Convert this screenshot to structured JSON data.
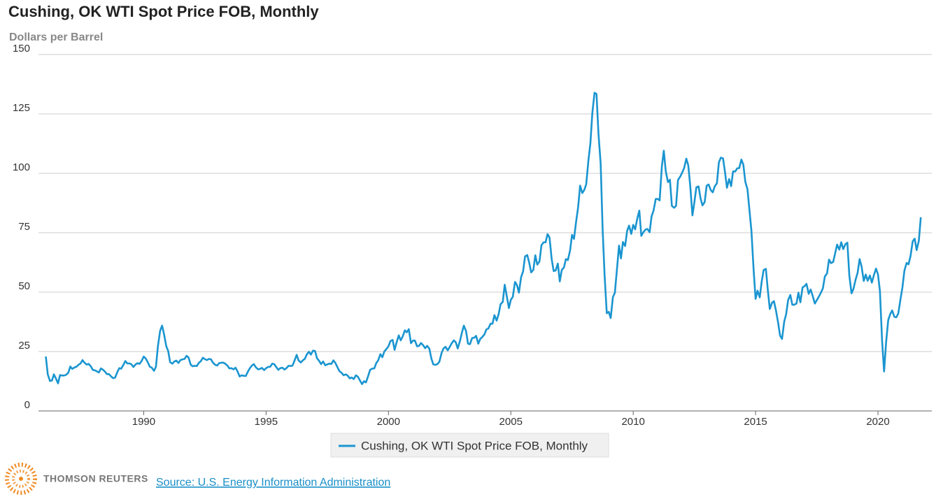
{
  "chart_data": {
    "type": "line",
    "title": "Cushing, OK WTI Spot Price FOB, Monthly",
    "subtitle": "Dollars per Barrel",
    "legend": "bottom",
    "grid": true,
    "xlim": [
      1985.7,
      2022.2
    ],
    "xticks": [
      1990,
      1995,
      2000,
      2005,
      2010,
      2015,
      2020
    ],
    "ylim": [
      0,
      150
    ],
    "yticks": [
      0,
      25,
      50,
      75,
      100,
      125,
      150
    ],
    "x": [
      1986.0,
      1986.08,
      1986.17,
      1986.25,
      1986.33,
      1986.42,
      1986.5,
      1986.58,
      1986.67,
      1986.75,
      1986.83,
      1986.92,
      1987.0,
      1987.08,
      1987.17,
      1987.25,
      1987.33,
      1987.42,
      1987.5,
      1987.58,
      1987.67,
      1987.75,
      1987.83,
      1987.92,
      1988.0,
      1988.08,
      1988.17,
      1988.25,
      1988.33,
      1988.42,
      1988.5,
      1988.58,
      1988.67,
      1988.75,
      1988.83,
      1988.92,
      1989.0,
      1989.08,
      1989.17,
      1989.25,
      1989.33,
      1989.42,
      1989.5,
      1989.58,
      1989.67,
      1989.75,
      1989.83,
      1989.92,
      1990.0,
      1990.08,
      1990.17,
      1990.25,
      1990.33,
      1990.42,
      1990.5,
      1990.58,
      1990.67,
      1990.75,
      1990.83,
      1990.92,
      1991.0,
      1991.08,
      1991.17,
      1991.25,
      1991.33,
      1991.42,
      1991.5,
      1991.58,
      1991.67,
      1991.75,
      1991.83,
      1991.92,
      1992.0,
      1992.08,
      1992.17,
      1992.25,
      1992.33,
      1992.42,
      1992.5,
      1992.58,
      1992.67,
      1992.75,
      1992.83,
      1992.92,
      1993.0,
      1993.08,
      1993.17,
      1993.25,
      1993.33,
      1993.42,
      1993.5,
      1993.58,
      1993.67,
      1993.75,
      1993.83,
      1993.92,
      1994.0,
      1994.08,
      1994.17,
      1994.25,
      1994.33,
      1994.42,
      1994.5,
      1994.58,
      1994.67,
      1994.75,
      1994.83,
      1994.92,
      1995.0,
      1995.08,
      1995.17,
      1995.25,
      1995.33,
      1995.42,
      1995.5,
      1995.58,
      1995.67,
      1995.75,
      1995.83,
      1995.92,
      1996.0,
      1996.08,
      1996.17,
      1996.25,
      1996.33,
      1996.42,
      1996.5,
      1996.58,
      1996.67,
      1996.75,
      1996.83,
      1996.92,
      1997.0,
      1997.08,
      1997.17,
      1997.25,
      1997.33,
      1997.42,
      1997.5,
      1997.58,
      1997.67,
      1997.75,
      1997.83,
      1997.92,
      1998.0,
      1998.08,
      1998.17,
      1998.25,
      1998.33,
      1998.42,
      1998.5,
      1998.58,
      1998.67,
      1998.75,
      1998.83,
      1998.92,
      1999.0,
      1999.08,
      1999.17,
      1999.25,
      1999.33,
      1999.42,
      1999.5,
      1999.58,
      1999.67,
      1999.75,
      1999.83,
      1999.92,
      2000.0,
      2000.08,
      2000.17,
      2000.25,
      2000.33,
      2000.42,
      2000.5,
      2000.58,
      2000.67,
      2000.75,
      2000.83,
      2000.92,
      2001.0,
      2001.08,
      2001.17,
      2001.25,
      2001.33,
      2001.42,
      2001.5,
      2001.58,
      2001.67,
      2001.75,
      2001.83,
      2001.92,
      2002.0,
      2002.08,
      2002.17,
      2002.25,
      2002.33,
      2002.42,
      2002.5,
      2002.58,
      2002.67,
      2002.75,
      2002.83,
      2002.92,
      2003.0,
      2003.08,
      2003.17,
      2003.25,
      2003.33,
      2003.42,
      2003.5,
      2003.58,
      2003.67,
      2003.75,
      2003.83,
      2003.92,
      2004.0,
      2004.08,
      2004.17,
      2004.25,
      2004.33,
      2004.42,
      2004.5,
      2004.58,
      2004.67,
      2004.75,
      2004.83,
      2004.92,
      2005.0,
      2005.08,
      2005.17,
      2005.25,
      2005.33,
      2005.42,
      2005.5,
      2005.58,
      2005.67,
      2005.75,
      2005.83,
      2005.92,
      2006.0,
      2006.08,
      2006.17,
      2006.25,
      2006.33,
      2006.42,
      2006.5,
      2006.58,
      2006.67,
      2006.75,
      2006.83,
      2006.92,
      2007.0,
      2007.08,
      2007.17,
      2007.25,
      2007.33,
      2007.42,
      2007.5,
      2007.58,
      2007.67,
      2007.75,
      2007.83,
      2007.92,
      2008.0,
      2008.08,
      2008.17,
      2008.25,
      2008.33,
      2008.42,
      2008.5,
      2008.58,
      2008.67,
      2008.75,
      2008.83,
      2008.92,
      2009.0,
      2009.08,
      2009.17,
      2009.25,
      2009.33,
      2009.42,
      2009.5,
      2009.58,
      2009.67,
      2009.75,
      2009.83,
      2009.92,
      2010.0,
      2010.08,
      2010.17,
      2010.25,
      2010.33,
      2010.42,
      2010.5,
      2010.58,
      2010.67,
      2010.75,
      2010.83,
      2010.92,
      2011.0,
      2011.08,
      2011.17,
      2011.25,
      2011.33,
      2011.42,
      2011.5,
      2011.58,
      2011.67,
      2011.75,
      2011.83,
      2011.92,
      2012.0,
      2012.08,
      2012.17,
      2012.25,
      2012.33,
      2012.42,
      2012.5,
      2012.58,
      2012.67,
      2012.75,
      2012.83,
      2012.92,
      2013.0,
      2013.08,
      2013.17,
      2013.25,
      2013.33,
      2013.42,
      2013.5,
      2013.58,
      2013.67,
      2013.75,
      2013.83,
      2013.92,
      2014.0,
      2014.08,
      2014.17,
      2014.25,
      2014.33,
      2014.42,
      2014.5,
      2014.58,
      2014.67,
      2014.75,
      2014.83,
      2014.92,
      2015.0,
      2015.08,
      2015.17,
      2015.25,
      2015.33,
      2015.42,
      2015.5,
      2015.58,
      2015.67,
      2015.75,
      2015.83,
      2015.92,
      2016.0,
      2016.08,
      2016.17,
      2016.25,
      2016.33,
      2016.42,
      2016.5,
      2016.58,
      2016.67,
      2016.75,
      2016.83,
      2016.92,
      2017.0,
      2017.08,
      2017.17,
      2017.25,
      2017.33,
      2017.42,
      2017.5,
      2017.58,
      2017.67,
      2017.75,
      2017.83,
      2017.92,
      2018.0,
      2018.08,
      2018.17,
      2018.25,
      2018.33,
      2018.42,
      2018.5,
      2018.58,
      2018.67,
      2018.75,
      2018.83,
      2018.92,
      2019.0,
      2019.08,
      2019.17,
      2019.25,
      2019.33,
      2019.42,
      2019.5,
      2019.58,
      2019.67,
      2019.75,
      2019.83,
      2019.92,
      2020.0,
      2020.08,
      2020.17,
      2020.25,
      2020.33,
      2020.42,
      2020.5,
      2020.58,
      2020.67,
      2020.75,
      2020.83,
      2020.92,
      2021.0,
      2021.08,
      2021.17,
      2021.25,
      2021.33,
      2021.42,
      2021.5,
      2021.58,
      2021.67,
      2021.75
    ],
    "series": [
      {
        "name": "Cushing, OK WTI Spot Price FOB, Monthly",
        "color": "#1a95d0",
        "values": [
          22.9,
          15.4,
          12.6,
          12.8,
          15.4,
          13.5,
          11.6,
          15.1,
          14.9,
          14.9,
          15.2,
          16.1,
          18.7,
          17.7,
          18.3,
          18.6,
          19.4,
          20.0,
          21.4,
          20.3,
          19.5,
          19.8,
          18.9,
          17.3,
          17.1,
          16.7,
          16.2,
          17.9,
          17.4,
          16.5,
          15.5,
          15.5,
          14.5,
          13.8,
          14.0,
          16.3,
          18.0,
          17.8,
          19.4,
          21.0,
          20.0,
          20.0,
          19.6,
          18.5,
          19.6,
          20.1,
          19.8,
          21.1,
          22.9,
          22.1,
          20.4,
          18.6,
          18.2,
          16.9,
          18.6,
          27.2,
          33.7,
          35.9,
          32.3,
          27.3,
          25.2,
          20.5,
          19.9,
          20.8,
          21.2,
          20.2,
          21.4,
          21.7,
          21.9,
          23.2,
          22.5,
          19.5,
          18.8,
          19.0,
          18.9,
          20.2,
          20.9,
          22.4,
          21.8,
          21.4,
          21.9,
          21.7,
          20.3,
          19.4,
          19.1,
          20.1,
          20.3,
          20.3,
          19.9,
          19.1,
          17.9,
          18.0,
          17.5,
          18.2,
          16.7,
          14.5,
          15.0,
          14.8,
          14.7,
          16.4,
          17.9,
          19.1,
          19.7,
          18.4,
          17.5,
          17.7,
          18.1,
          17.2,
          18.0,
          18.5,
          18.6,
          19.9,
          19.7,
          18.4,
          17.3,
          18.0,
          18.2,
          17.4,
          18.0,
          19.0,
          18.9,
          19.1,
          21.4,
          23.6,
          21.2,
          20.4,
          21.3,
          21.9,
          23.9,
          24.9,
          23.7,
          25.4,
          25.2,
          22.2,
          21.0,
          19.7,
          20.8,
          19.2,
          19.6,
          19.9,
          19.8,
          21.3,
          20.2,
          18.3,
          16.7,
          16.1,
          15.0,
          15.4,
          14.9,
          13.7,
          14.1,
          13.4,
          15.0,
          14.4,
          12.9,
          11.3,
          12.5,
          12.0,
          14.7,
          17.3,
          17.8,
          17.9,
          20.1,
          21.3,
          23.9,
          22.6,
          25.0,
          26.1,
          27.2,
          29.4,
          29.9,
          25.7,
          28.8,
          31.8,
          29.7,
          31.3,
          33.9,
          33.1,
          34.4,
          28.5,
          29.6,
          29.6,
          27.2,
          27.4,
          28.6,
          27.6,
          26.4,
          27.4,
          26.2,
          22.2,
          19.6,
          19.4,
          19.7,
          20.7,
          24.4,
          26.3,
          27.0,
          25.5,
          26.9,
          28.4,
          29.7,
          28.9,
          26.3,
          29.4,
          32.9,
          35.9,
          33.6,
          28.3,
          28.1,
          30.7,
          30.8,
          31.6,
          28.3,
          30.3,
          31.1,
          32.2,
          34.3,
          34.7,
          36.7,
          36.7,
          40.3,
          38.0,
          40.7,
          44.9,
          45.9,
          53.1,
          48.5,
          43.3,
          46.8,
          48.0,
          54.3,
          53.0,
          49.8,
          56.3,
          58.7,
          65.0,
          65.6,
          62.4,
          58.3,
          59.4,
          65.5,
          61.6,
          62.9,
          69.7,
          70.9,
          71.0,
          74.4,
          73.0,
          63.8,
          58.9,
          59.1,
          62.0,
          54.5,
          59.3,
          60.4,
          63.9,
          63.5,
          67.5,
          74.1,
          72.4,
          79.9,
          85.8,
          94.8,
          91.7,
          93.0,
          95.4,
          105.5,
          112.6,
          125.4,
          133.9,
          133.4,
          116.7,
          104.1,
          76.6,
          57.3,
          41.1,
          41.7,
          39.1,
          47.9,
          49.7,
          59.0,
          69.6,
          64.2,
          71.1,
          69.4,
          75.7,
          78.0,
          74.5,
          78.3,
          76.4,
          81.2,
          84.3,
          73.7,
          75.3,
          76.3,
          76.6,
          75.2,
          81.9,
          84.3,
          89.2,
          89.2,
          88.6,
          102.9,
          109.5,
          100.9,
          96.3,
          97.3,
          86.3,
          85.5,
          86.3,
          97.2,
          98.6,
          100.3,
          102.2,
          106.2,
          103.3,
          94.7,
          82.3,
          87.9,
          94.1,
          94.5,
          89.5,
          86.5,
          87.9,
          94.8,
          95.3,
          92.9,
          92.0,
          94.5,
          95.8,
          104.6,
          106.6,
          106.3,
          100.5,
          93.9,
          97.6,
          94.6,
          100.8,
          100.8,
          102.1,
          102.2,
          105.8,
          103.6,
          96.5,
          93.2,
          84.4,
          75.8,
          59.3,
          47.2,
          50.6,
          47.8,
          54.5,
          59.3,
          59.8,
          50.9,
          42.9,
          45.5,
          46.2,
          42.4,
          37.2,
          31.7,
          30.3,
          37.6,
          40.8,
          46.7,
          48.8,
          44.7,
          44.7,
          45.2,
          49.8,
          45.7,
          52.0,
          52.5,
          53.5,
          49.3,
          51.1,
          48.5,
          45.2,
          46.6,
          48.0,
          49.8,
          51.6,
          56.6,
          57.9,
          63.7,
          62.2,
          62.7,
          66.3,
          70.0,
          67.9,
          71.0,
          68.1,
          70.2,
          70.8,
          57.0,
          49.5,
          51.4,
          55.0,
          58.2,
          63.9,
          60.8,
          54.7,
          57.4,
          54.8,
          57.0,
          54.0,
          57.0,
          59.9,
          57.5,
          50.5,
          29.2,
          16.6,
          28.6,
          38.3,
          40.7,
          42.3,
          39.6,
          39.4,
          41.0,
          47.0,
          52.0,
          59.0,
          62.3,
          61.7,
          65.2,
          71.4,
          72.5,
          67.7,
          71.6,
          81.5
        ]
      }
    ],
    "branding": "THOMSON REUTERS",
    "source": "Source: U.S. Energy Information Administration"
  }
}
